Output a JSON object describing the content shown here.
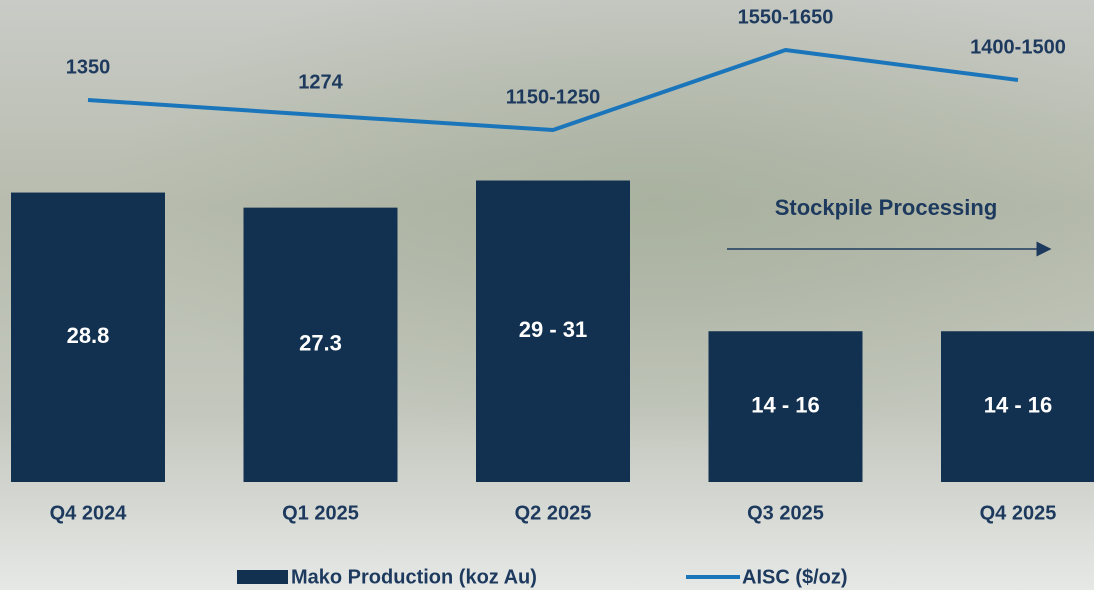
{
  "chart_data": {
    "type": "combo",
    "categories": [
      "Q4 2024",
      "Q1 2025",
      "Q2 2025",
      "Q3 2025",
      "Q4 2025"
    ],
    "series": [
      {
        "name": "Mako Production (koz Au)",
        "type": "bar",
        "color": "#12304f",
        "values": [
          28.8,
          27.3,
          30,
          15,
          15
        ],
        "value_labels": [
          "28.8",
          "27.3",
          "29 - 31",
          "14 - 16",
          "14 - 16"
        ]
      },
      {
        "name": "AISC ($/oz)",
        "type": "line",
        "axis": "y2",
        "color": "#1b75bb",
        "values": [
          1350,
          1274,
          1200,
          1600,
          1450
        ],
        "value_labels": [
          "1350",
          "1274",
          "1150-1250",
          "1550-1650",
          "1400-1500"
        ]
      }
    ],
    "annotation": "Stockpile Processing"
  }
}
